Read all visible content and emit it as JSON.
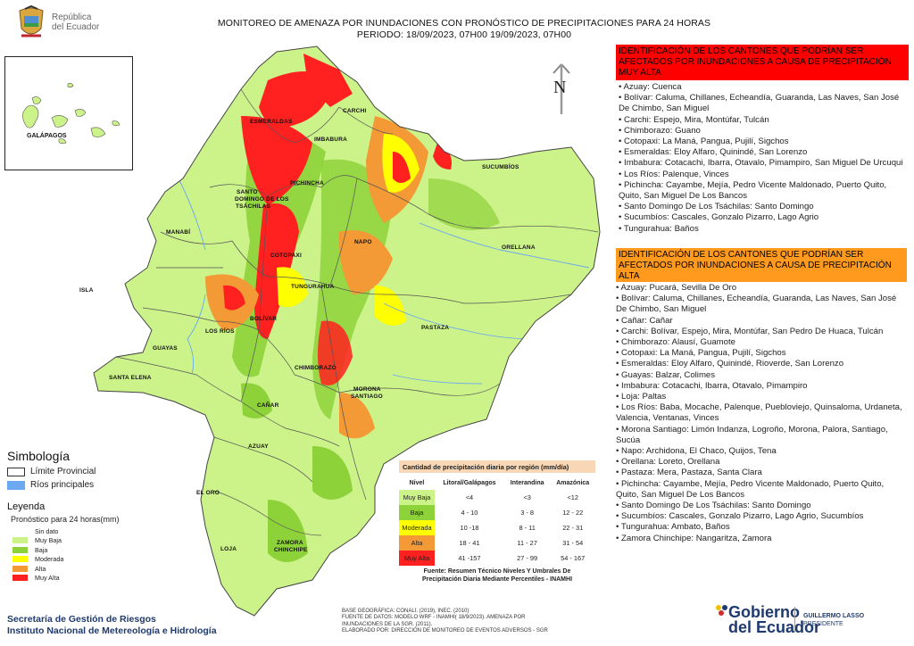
{
  "header": {
    "republica": "República",
    "del_ecuador": "del Ecuador",
    "title_line1": "MONITOREO DE AMENAZA POR INUNDACIONES  CON PRONÓSTICO DE  PRECIPITACIONES PARA 24 HORAS",
    "title_line2": "PERIODO: 18/09/2023, 07H00 19/09/2023, 07H00"
  },
  "inset": {
    "label": "GALÁPAGOS"
  },
  "north": {
    "label": "N"
  },
  "provinces": [
    {
      "id": "carchi",
      "name": "CARCHI"
    },
    {
      "id": "esmeraldas",
      "name": "ESMERALDAS"
    },
    {
      "id": "imbabura",
      "name": "IMBABURA"
    },
    {
      "id": "sucumbios",
      "name": "SUCUMBÍOS"
    },
    {
      "id": "pichincha",
      "name": "PICHINCHA"
    },
    {
      "id": "santo-domingo-1",
      "name": "SANTO"
    },
    {
      "id": "santo-domingo-2",
      "name": "DOMINGO DE LOS"
    },
    {
      "id": "santo-domingo-3",
      "name": "TSÁCHILAS"
    },
    {
      "id": "manabi",
      "name": "MANABÍ"
    },
    {
      "id": "napo",
      "name": "NAPO"
    },
    {
      "id": "orellana",
      "name": "ORELLANA"
    },
    {
      "id": "cotopaxi",
      "name": "COTOPAXI"
    },
    {
      "id": "isla",
      "name": "ISLA"
    },
    {
      "id": "tungurahua",
      "name": "TUNGURAHUA"
    },
    {
      "id": "bolivar",
      "name": "BOLÍVAR"
    },
    {
      "id": "los-rios",
      "name": "LOS RÍOS"
    },
    {
      "id": "pastaza",
      "name": "PASTAZA"
    },
    {
      "id": "guayas",
      "name": "GUAYAS"
    },
    {
      "id": "chimborazo",
      "name": "CHIMBORAZO"
    },
    {
      "id": "santa-elena",
      "name": "SANTA ELENA"
    },
    {
      "id": "morona-1",
      "name": "MORONA"
    },
    {
      "id": "morona-2",
      "name": "SANTIAGO"
    },
    {
      "id": "canar",
      "name": "CAÑAR"
    },
    {
      "id": "azuay",
      "name": "AZUAY"
    },
    {
      "id": "el-oro",
      "name": "EL ORO"
    },
    {
      "id": "loja",
      "name": "LOJA"
    },
    {
      "id": "zamora-1",
      "name": "ZAMORA"
    },
    {
      "id": "zamora-2",
      "name": "CHINCHIPE"
    }
  ],
  "muy_alta": {
    "header": "IDENTIFICACIÓN DE LOS CANTONES QUE PODRÍAN SER AFECTADOS POR INUNDACIONES  A CAUSA DE PRECIPITACIÓN MUY ALTA",
    "color": "#ff0000",
    "items": [
      "• Azuay: Cuenca",
      "• Bolívar: Caluma, Chillanes, Echeandía, Guaranda, Las Naves, San José De Chimbo, San Miguel",
      "• Carchi: Espejo, Mira, Montúfar, Tulcán",
      "• Chimborazo: Guano",
      "• Cotopaxi: La Maná, Pangua, Pujilí, Sigchos",
      "• Esmeraldas: Eloy Alfaro, Quinindé, San Lorenzo",
      "• Imbabura: Cotacachi, Ibarra, Otavalo, Pimampiro, San Miguel De Urcuqui",
      "• Los Ríos: Palenque, Vinces",
      "• Pichincha: Cayambe, Mejía, Pedro Vicente Maldonado, Puerto Quito, Quito, San Miguel De Los Bancos",
      "• Santo Domingo De Los Tsáchilas: Santo Domingo",
      "• Sucumbíos: Cascales, Gonzalo Pizarro, Lago Agrio",
      "• Tungurahua: Baños"
    ]
  },
  "alta": {
    "header": "IDENTIFICACIÓN DE LOS CANTONES QUE  PODRÍAN SER AFECTADOS POR INUNDACIONES  A CAUSA DE PRECIPITACIÓN ALTA",
    "color": "#ff9a1f",
    "items": [
      "• Azuay: Pucará, Sevilla De Oro",
      "• Bolívar: Caluma, Chillanes, Echeandía, Guaranda, Las Naves, San José De Chimbo, San Miguel",
      "• Cañar: Cañar",
      "• Carchi: Bolívar, Espejo, Mira, Montúfar, San Pedro De Huaca, Tulcán",
      "• Chimborazo: Alausí, Guamote",
      "• Cotopaxi: La Maná, Pangua, Pujilí, Sigchos",
      "• Esmeraldas: Eloy Alfaro, Quinindé, Rioverde, San Lorenzo",
      "• Guayas: Balzar, Colimes",
      "• Imbabura: Cotacachi, Ibarra, Otavalo, Pimampiro",
      "• Loja: Paltas",
      "• Los Ríos: Baba, Mocache, Palenque, Puebloviejo, Quinsaloma, Urdaneta, Valencia, Ventanas, Vinces",
      "• Morona Santiago: Limón Indanza, Logroño, Morona, Palora, Santiago, Sucúa",
      "• Napo: Archidona, El Chaco, Quijos, Tena",
      "• Orellana: Loreto, Orellana",
      "• Pastaza: Mera, Pastaza, Santa Clara",
      "• Pichincha: Cayambe, Mejía, Pedro Vicente Maldonado, Puerto Quito, Quito, San Miguel De Los Bancos",
      "• Santo Domingo De Los Tsáchilas: Santo Domingo",
      "• Sucumbíos: Cascales, Gonzalo Pizarro, Lago Agrio, Sucumbíos",
      "• Tungurahua: Ambato, Baños",
      "• Zamora Chinchipe: Nangaritza, Zamora"
    ]
  },
  "simbologia": {
    "title": "Simbología",
    "limite": "Límite Provincial",
    "rios": "Ríos principales",
    "rios_color": "#6aa8f0"
  },
  "leyenda": {
    "title": "Leyenda",
    "subtitle": "Pronóstico para 24 horas(mm)",
    "items": [
      {
        "label": "Sin dato",
        "color": "#ffffff"
      },
      {
        "label": "Muy Baja",
        "color": "#ccf28a"
      },
      {
        "label": "Baja",
        "color": "#8ed23a"
      },
      {
        "label": "Moderada",
        "color": "#ffff00"
      },
      {
        "label": "Alta",
        "color": "#f39a36"
      },
      {
        "label": "Muy Alta",
        "color": "#ff2020"
      }
    ]
  },
  "precip_table": {
    "caption": "Cantidad de precipitación diaria por región (mm/día)",
    "headers": [
      "Nivel",
      "Litoral/Galápagos",
      "Interandina",
      "Amazónica"
    ],
    "rows": [
      {
        "nivel": "Muy Baja",
        "color": "#ccf28a",
        "litoral": "<4",
        "interandina": "<3",
        "amazonica": "<12"
      },
      {
        "nivel": "Baja",
        "color": "#8ed23a",
        "litoral": "4 - 10",
        "interandina": "3 - 8",
        "amazonica": "12 - 22"
      },
      {
        "nivel": "Moderada",
        "color": "#ffff00",
        "litoral": "10 -18",
        "interandina": "8 - 11",
        "amazonica": "22 - 31"
      },
      {
        "nivel": "Alta",
        "color": "#f39a36",
        "litoral": "18 - 41",
        "interandina": "11 - 27",
        "amazonica": "31 - 54"
      },
      {
        "nivel": "Muy Alta",
        "color": "#ff2020",
        "litoral": "41 -157",
        "interandina": "27 - 99",
        "amazonica": "54 - 167"
      }
    ],
    "source_line1": "Fuente: Resumen Técnico Niveles Y Umbrales De",
    "source_line2": "Precipitación Diaria Mediante Percentiles - INAMHI"
  },
  "footer": {
    "org1": "Secretaría de Gestión de Riesgos",
    "org2": "Instituto Nacional de Metereología e Hidrología",
    "base": "BASE GEOGRÁFICA: CONALI. (2019), INEC. (2010)",
    "fuente1": "FUENTE DE DATOS: MODELO WRF - INAMHI( 18/9/2023).  AMENAZA POR",
    "fuente2": "INUNDACIONES DE LA SGR. (2011).",
    "elaborado": "ELABORADO POR: DIRECCIÓN DE MONITOREO DE EVENTOS ADVERSOS - SGR",
    "gob1": "Gobierno",
    "gob2": "del Ecuador",
    "pres_name": "GUILLERMO LASSO",
    "pres_title": "PRESIDENTE"
  }
}
